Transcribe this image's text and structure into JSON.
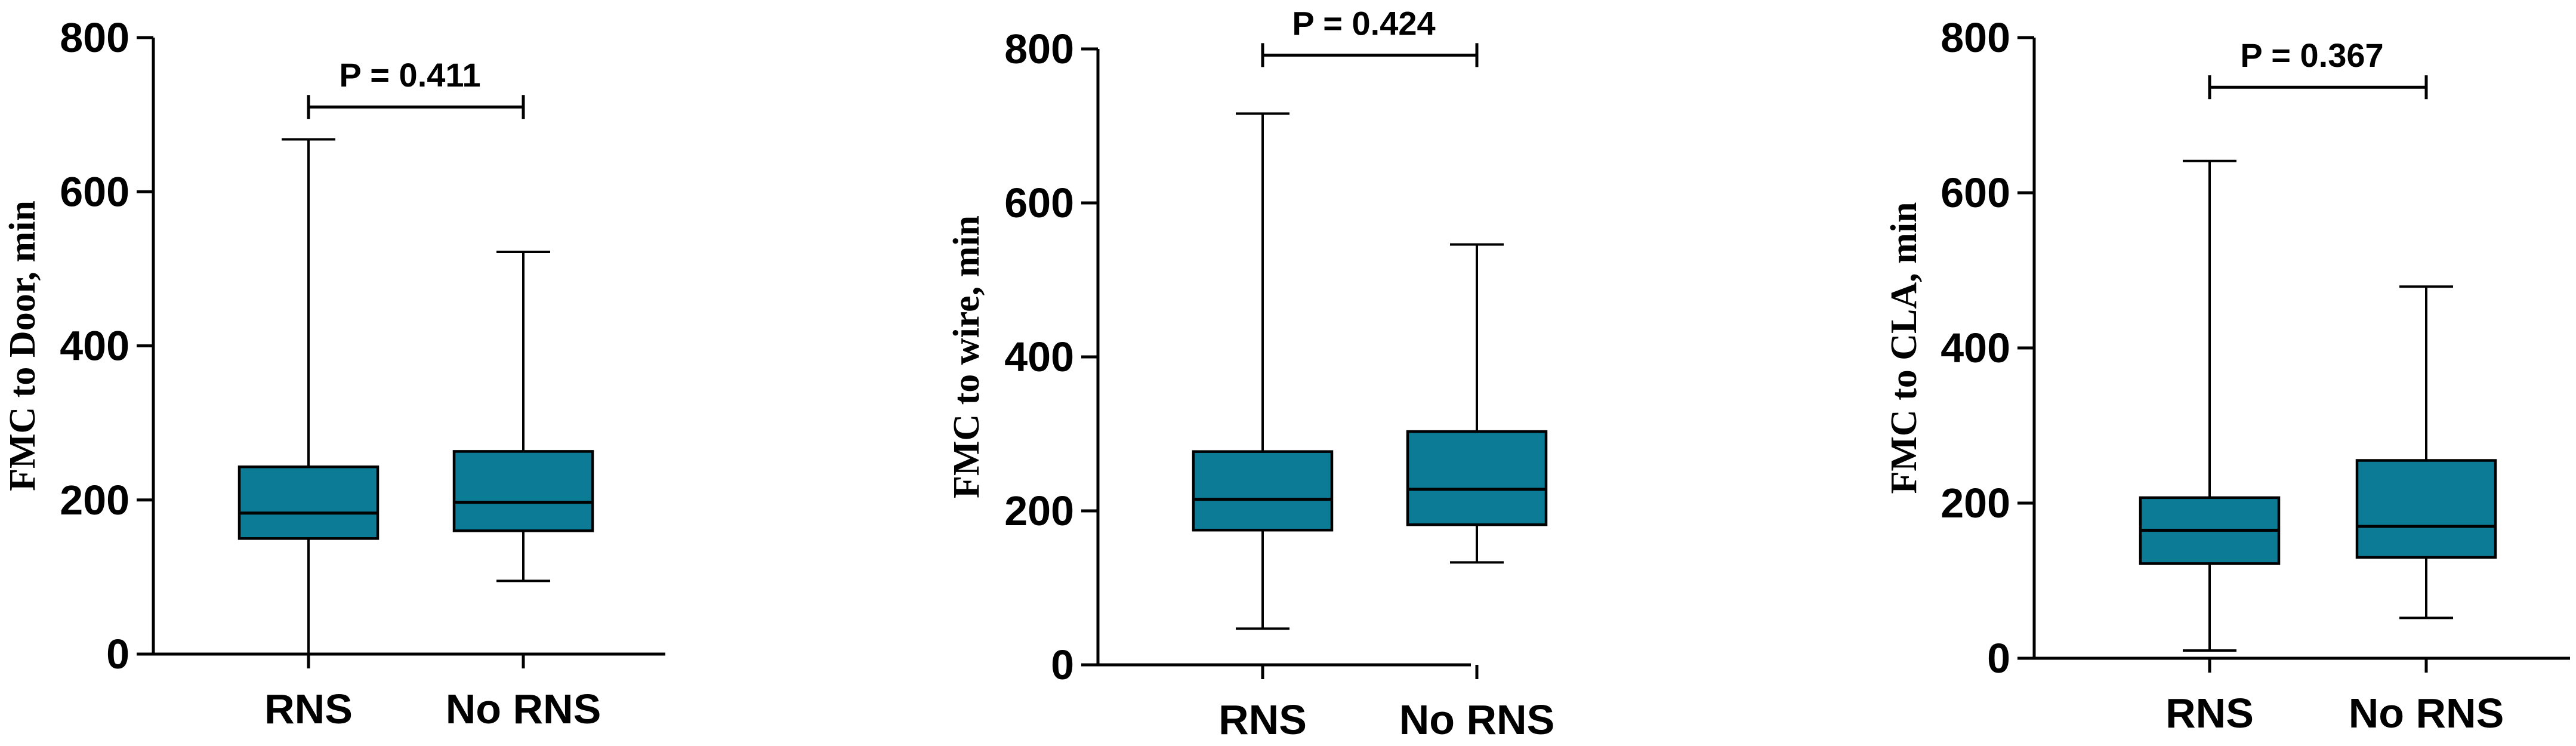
{
  "colors": {
    "box_fill": "#0c7b96",
    "stroke": "#000000"
  },
  "chart_data": [
    {
      "type": "box",
      "ylabel": "FMC to Door, min",
      "ylim": [
        0,
        800
      ],
      "yticks": [
        0,
        200,
        400,
        600,
        800
      ],
      "categories": [
        "RNS",
        "No RNS"
      ],
      "boxes": [
        {
          "name": "RNS",
          "min": 0,
          "q1": 150,
          "median": 183,
          "q3": 243,
          "max": 668
        },
        {
          "name": "No RNS",
          "min": 95,
          "q1": 160,
          "median": 197,
          "q3": 263,
          "max": 522
        }
      ],
      "annotation": "P = 0.411",
      "annotation_value": 710
    },
    {
      "type": "box",
      "ylabel": "FMC to wire, min",
      "ylim": [
        0,
        800
      ],
      "yticks": [
        0,
        200,
        400,
        600,
        800
      ],
      "categories": [
        "RNS",
        "No RNS"
      ],
      "boxes": [
        {
          "name": "RNS",
          "min": 47,
          "q1": 175,
          "median": 215,
          "q3": 277,
          "max": 716
        },
        {
          "name": "No RNS",
          "min": 133,
          "q1": 182,
          "median": 228,
          "q3": 303,
          "max": 546
        }
      ],
      "annotation": "P = 0.424",
      "annotation_value": 792
    },
    {
      "type": "box",
      "ylabel": "FMC to CLA, min",
      "ylim": [
        0,
        800
      ],
      "yticks": [
        0,
        200,
        400,
        600,
        800
      ],
      "categories": [
        "RNS",
        "No RNS"
      ],
      "boxes": [
        {
          "name": "RNS",
          "min": 10,
          "q1": 122,
          "median": 165,
          "q3": 207,
          "max": 641
        },
        {
          "name": "No RNS",
          "min": 52,
          "q1": 130,
          "median": 170,
          "q3": 255,
          "max": 479
        }
      ],
      "annotation": "P = 0.367",
      "annotation_value": 736
    }
  ]
}
